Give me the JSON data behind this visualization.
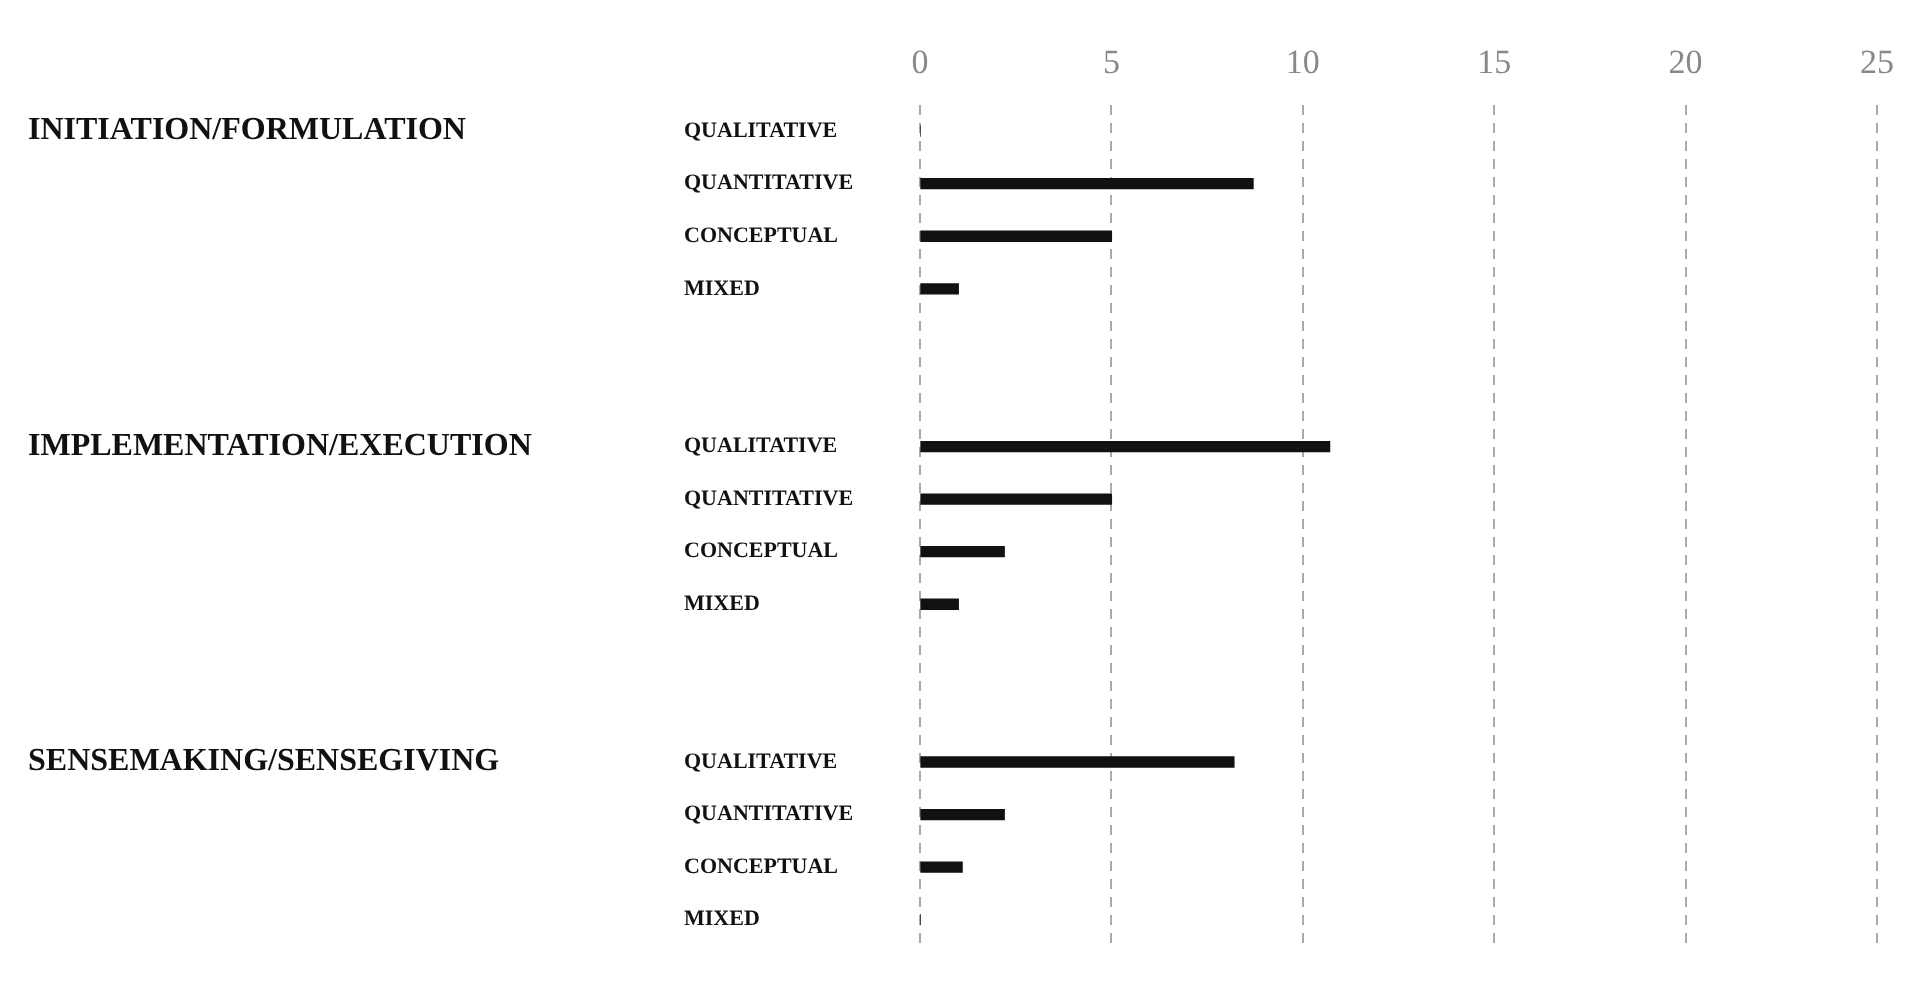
{
  "chart_data": {
    "type": "bar",
    "orientation": "horizontal",
    "categories": [
      "QUALITATIVE",
      "QUANTITATIVE",
      "CONCEPTUAL",
      "MIXED",
      null,
      null,
      "QUALITATIVE",
      "QUANTITATIVE",
      "CONCEPTUAL",
      "MIXED",
      null,
      null,
      "QUALITATIVE",
      "QUANTITATIVE",
      "CONCEPTUAL",
      "MIXED"
    ],
    "values": [
      0,
      8.7,
      5,
      1,
      null,
      null,
      10.7,
      5,
      2.2,
      1,
      null,
      null,
      8.2,
      2.2,
      1.1,
      0
    ],
    "color": "#111111",
    "xlim": [
      0,
      25
    ],
    "xticks": [
      0,
      5,
      10,
      15,
      20,
      25
    ],
    "grid": "x",
    "annotations": [
      "INITIATION/FORMULATION",
      "IMPLEMENTATION/EXECUTION",
      "SENSEMAKING/SENSEGIVING"
    ]
  }
}
